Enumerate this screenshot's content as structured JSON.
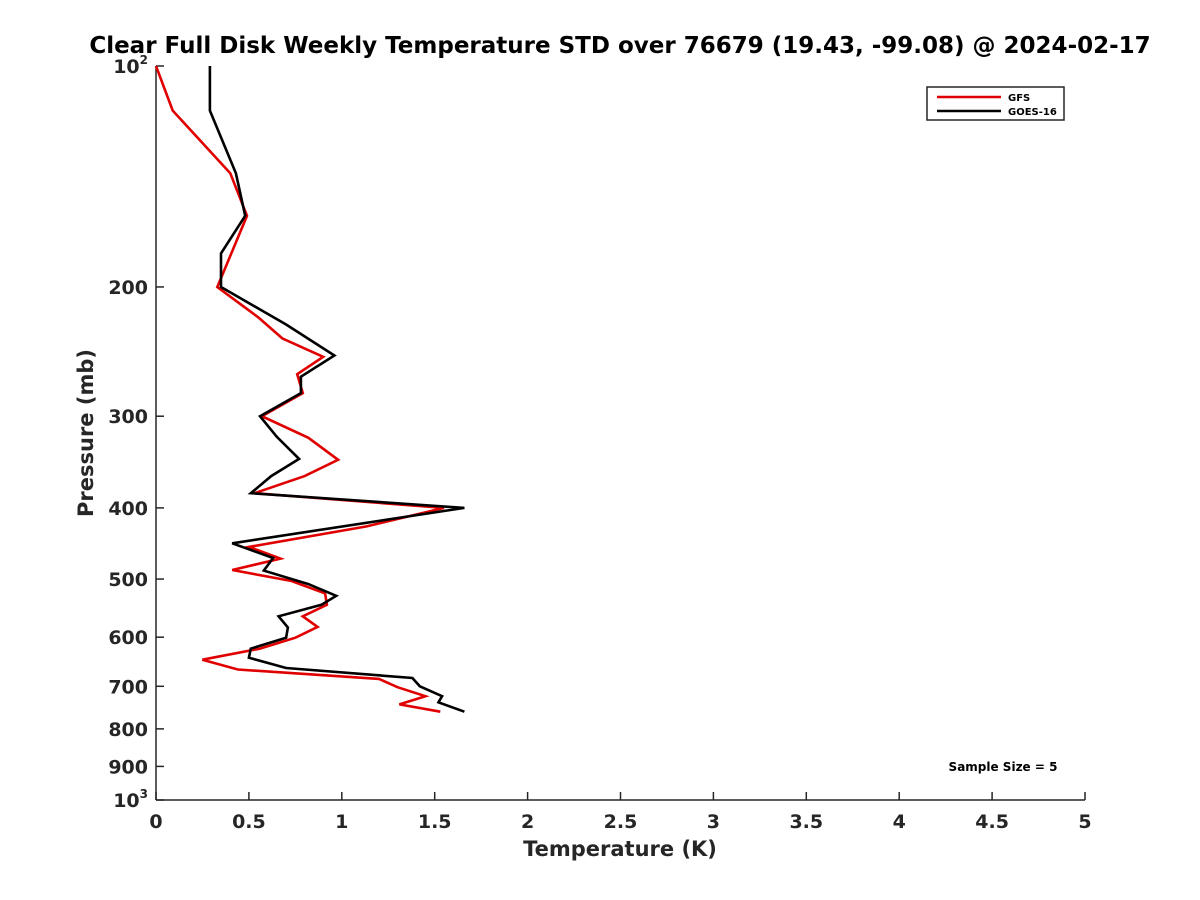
{
  "chart_data": {
    "type": "line",
    "title": "Clear Full Disk Weekly Temperature STD over 76679 (19.43, -99.08) @ 2024-02-17",
    "xlabel": "Temperature (K)",
    "ylabel": "Pressure (mb)",
    "xlim": [
      0,
      5
    ],
    "ylim": [
      100,
      1000
    ],
    "y_scale": "log",
    "y_reversed": true,
    "x_ticks": [
      "0",
      "0.5",
      "1",
      "1.5",
      "2",
      "2.5",
      "3",
      "3.5",
      "4",
      "4.5",
      "5"
    ],
    "y_ticks": [
      {
        "value": 100,
        "base": "10",
        "exp": "2"
      },
      {
        "value": 200,
        "label": "200"
      },
      {
        "value": 300,
        "label": "300"
      },
      {
        "value": 400,
        "label": "400"
      },
      {
        "value": 500,
        "label": "500"
      },
      {
        "value": 600,
        "label": "600"
      },
      {
        "value": 700,
        "label": "700"
      },
      {
        "value": 800,
        "label": "800"
      },
      {
        "value": 900,
        "label": "900"
      },
      {
        "value": 1000,
        "base": "10",
        "exp": "3"
      }
    ],
    "grid": false,
    "legend_position": "top-right",
    "series": [
      {
        "name": "GFS",
        "color": "#e00000",
        "points": [
          [
            0.0,
            100
          ],
          [
            0.09,
            115
          ],
          [
            0.4,
            140
          ],
          [
            0.49,
            160
          ],
          [
            0.33,
            200
          ],
          [
            0.55,
            220
          ],
          [
            0.68,
            235
          ],
          [
            0.9,
            249
          ],
          [
            0.76,
            263
          ],
          [
            0.79,
            279
          ],
          [
            0.57,
            300
          ],
          [
            0.82,
            321
          ],
          [
            0.98,
            344
          ],
          [
            0.8,
            362
          ],
          [
            0.53,
            382
          ],
          [
            1.55,
            400
          ],
          [
            1.13,
            424
          ],
          [
            0.5,
            452
          ],
          [
            0.67,
            469
          ],
          [
            0.41,
            486
          ],
          [
            0.73,
            503
          ],
          [
            0.91,
            523
          ],
          [
            0.92,
            542
          ],
          [
            0.79,
            562
          ],
          [
            0.87,
            581
          ],
          [
            0.75,
            601
          ],
          [
            0.56,
            622
          ],
          [
            0.25,
            644
          ],
          [
            0.44,
            664
          ],
          [
            1.2,
            684
          ],
          [
            1.3,
            702
          ],
          [
            1.45,
            722
          ],
          [
            1.31,
            741
          ],
          [
            1.53,
            758
          ]
        ]
      },
      {
        "name": "GOES-16",
        "color": "#000000",
        "points": [
          [
            0.29,
            100
          ],
          [
            0.29,
            115
          ],
          [
            0.43,
            140
          ],
          [
            0.48,
            160
          ],
          [
            0.35,
            180
          ],
          [
            0.35,
            200
          ],
          [
            0.7,
            225
          ],
          [
            0.96,
            248
          ],
          [
            0.78,
            265
          ],
          [
            0.78,
            279
          ],
          [
            0.56,
            300
          ],
          [
            0.65,
            320
          ],
          [
            0.77,
            343
          ],
          [
            0.62,
            362
          ],
          [
            0.51,
            382
          ],
          [
            1.66,
            400
          ],
          [
            0.41,
            447
          ],
          [
            0.63,
            468
          ],
          [
            0.58,
            487
          ],
          [
            0.82,
            508
          ],
          [
            0.97,
            527
          ],
          [
            0.89,
            542
          ],
          [
            0.66,
            562
          ],
          [
            0.71,
            582
          ],
          [
            0.7,
            601
          ],
          [
            0.51,
            622
          ],
          [
            0.5,
            640
          ],
          [
            0.7,
            661
          ],
          [
            1.38,
            682
          ],
          [
            1.42,
            700
          ],
          [
            1.54,
            722
          ],
          [
            1.52,
            736
          ],
          [
            1.66,
            758
          ]
        ]
      }
    ],
    "annotation": "Sample Size = 5"
  }
}
